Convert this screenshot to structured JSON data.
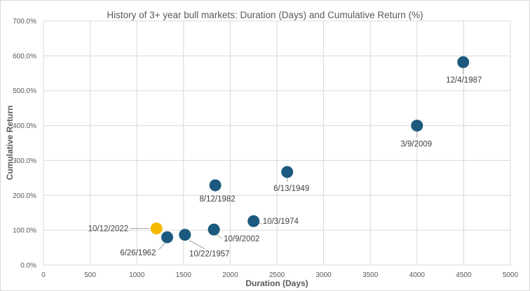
{
  "chart_data": {
    "type": "scatter",
    "title": "History of 3+ year bull markets: Duration (Days) and Cumulative Return (%)",
    "xlabel": "Duration (Days)",
    "ylabel": "Cumulative Return",
    "xlim": [
      0,
      5000
    ],
    "ylim": [
      0,
      700
    ],
    "x_ticks": [
      "0",
      "500",
      "1000",
      "1500",
      "2000",
      "2500",
      "3000",
      "3500",
      "4000",
      "4500",
      "5000"
    ],
    "y_ticks": [
      "0.0%",
      "100.0%",
      "200.0%",
      "300.0%",
      "400.0%",
      "500.0%",
      "600.0%",
      "700.0%"
    ],
    "grid": true,
    "legend": "none",
    "colors": {
      "default": "#1b5a7e",
      "highlight": "#f5b800",
      "grid": "#d9d9d9",
      "leader": "#a6a6a6"
    },
    "points": [
      {
        "label": "10/12/2022",
        "x": 1210,
        "y": 105,
        "highlight": true
      },
      {
        "label": "6/26/1962",
        "x": 1325,
        "y": 80
      },
      {
        "label": "10/22/1957",
        "x": 1515,
        "y": 87
      },
      {
        "label": "8/12/1982",
        "x": 1840,
        "y": 229
      },
      {
        "label": "10/9/2002",
        "x": 1825,
        "y": 102
      },
      {
        "label": "10/3/1974",
        "x": 2250,
        "y": 126
      },
      {
        "label": "6/13/1949",
        "x": 2610,
        "y": 267
      },
      {
        "label": "3/9/2009",
        "x": 4000,
        "y": 400
      },
      {
        "label": "12/4/1987",
        "x": 4495,
        "y": 582
      }
    ]
  }
}
